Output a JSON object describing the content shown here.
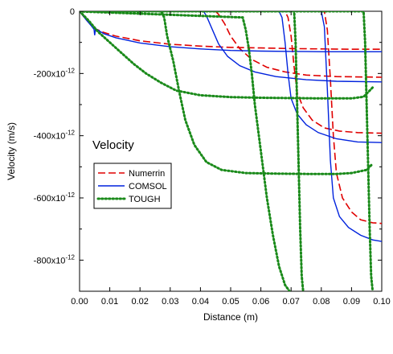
{
  "chart_data": {
    "type": "line",
    "xlabel": "Distance (m)",
    "ylabel": "Velocity (m/s)",
    "annotation": "Velocity",
    "xlim": [
      0,
      0.1
    ],
    "ylim": [
      -9e-10,
      0
    ],
    "x_ticks": [
      {
        "value": 0.0,
        "label": "0.00"
      },
      {
        "value": 0.01,
        "label": "0.01"
      },
      {
        "value": 0.02,
        "label": "0.02"
      },
      {
        "value": 0.03,
        "label": "0.03"
      },
      {
        "value": 0.04,
        "label": "0.04"
      },
      {
        "value": 0.05,
        "label": "0.05"
      },
      {
        "value": 0.06,
        "label": "0.06"
      },
      {
        "value": 0.07,
        "label": "0.07"
      },
      {
        "value": 0.08,
        "label": "0.08"
      },
      {
        "value": 0.09,
        "label": "0.09"
      },
      {
        "value": 0.1,
        "label": "0.10"
      }
    ],
    "y_ticks": [
      {
        "value": 0,
        "label": "0"
      },
      {
        "value": -2e-10,
        "mantissa": "-200x10",
        "exp": "-12"
      },
      {
        "value": -4e-10,
        "mantissa": "-400x10",
        "exp": "-12"
      },
      {
        "value": -6e-10,
        "mantissa": "-600x10",
        "exp": "-12"
      },
      {
        "value": -8e-10,
        "mantissa": "-800x10",
        "exp": "-12"
      }
    ],
    "legend": {
      "position": "middle-left",
      "entries": [
        {
          "label": "Numerrin",
          "color": "#e00000",
          "dash": "dashed"
        },
        {
          "label": "COMSOL",
          "color": "#0022dd",
          "dash": "solid"
        },
        {
          "label": "TOUGH",
          "color": "#1a8a1a",
          "dash": "dotted"
        }
      ]
    },
    "series": [
      {
        "group": "Numerrin",
        "color": "#e00000",
        "dash": "dashed",
        "points": [
          [
            0,
            0
          ],
          [
            0.002,
            -2.5e-11
          ],
          [
            0.005,
            -5.5e-11
          ],
          [
            0.008,
            -6.8e-11
          ],
          [
            0.012,
            -8e-11
          ],
          [
            0.02,
            -9.5e-11
          ],
          [
            0.03,
            -1.06e-10
          ],
          [
            0.04,
            -1.12e-10
          ],
          [
            0.05,
            -1.16e-10
          ],
          [
            0.06,
            -1.18e-10
          ],
          [
            0.07,
            -1.2e-10
          ],
          [
            0.08,
            -1.21e-10
          ],
          [
            0.09,
            -1.22e-10
          ],
          [
            0.1,
            -1.22e-10
          ]
        ]
      },
      {
        "group": "Numerrin",
        "color": "#e00000",
        "dash": "dashed",
        "points": [
          [
            0,
            0
          ],
          [
            0.045,
            0
          ],
          [
            0.046,
            -1e-11
          ],
          [
            0.048,
            -4e-11
          ],
          [
            0.05,
            -8e-11
          ],
          [
            0.053,
            -1.2e-10
          ],
          [
            0.057,
            -1.55e-10
          ],
          [
            0.062,
            -1.8e-10
          ],
          [
            0.068,
            -1.95e-10
          ],
          [
            0.075,
            -2.05e-10
          ],
          [
            0.085,
            -2.1e-10
          ],
          [
            0.1,
            -2.12e-10
          ]
        ]
      },
      {
        "group": "Numerrin",
        "color": "#e00000",
        "dash": "dashed",
        "points": [
          [
            0,
            0
          ],
          [
            0.068,
            0
          ],
          [
            0.069,
            -2e-11
          ],
          [
            0.07,
            -8e-11
          ],
          [
            0.071,
            -1.8e-10
          ],
          [
            0.072,
            -2.6e-10
          ],
          [
            0.074,
            -3.1e-10
          ],
          [
            0.077,
            -3.5e-10
          ],
          [
            0.081,
            -3.75e-10
          ],
          [
            0.086,
            -3.85e-10
          ],
          [
            0.092,
            -3.9e-10
          ],
          [
            0.1,
            -3.92e-10
          ]
        ]
      },
      {
        "group": "Numerrin",
        "color": "#e00000",
        "dash": "dashed",
        "points": [
          [
            0,
            0
          ],
          [
            0.081,
            0
          ],
          [
            0.082,
            -6e-11
          ],
          [
            0.083,
            -2.2e-10
          ],
          [
            0.084,
            -4e-10
          ],
          [
            0.085,
            -5.2e-10
          ],
          [
            0.087,
            -6e-10
          ],
          [
            0.09,
            -6.45e-10
          ],
          [
            0.093,
            -6.7e-10
          ],
          [
            0.097,
            -6.8e-10
          ],
          [
            0.1,
            -6.82e-10
          ]
        ]
      },
      {
        "group": "COMSOL",
        "color": "#0022dd",
        "dash": "solid",
        "points": [
          [
            0,
            0
          ],
          [
            0.002,
            -2.5e-11
          ],
          [
            0.004,
            -4.8e-11
          ],
          [
            0.0048,
            -5.8e-11
          ],
          [
            0.005,
            -7.7e-11
          ],
          [
            0.0053,
            -5.6e-11
          ],
          [
            0.008,
            -7.2e-11
          ],
          [
            0.012,
            -8.5e-11
          ],
          [
            0.02,
            -1.02e-10
          ],
          [
            0.03,
            -1.14e-10
          ],
          [
            0.04,
            -1.21e-10
          ],
          [
            0.05,
            -1.26e-10
          ],
          [
            0.06,
            -1.28e-10
          ],
          [
            0.07,
            -1.29e-10
          ],
          [
            0.08,
            -1.3e-10
          ],
          [
            0.09,
            -1.3e-10
          ],
          [
            0.1,
            -1.3e-10
          ]
        ]
      },
      {
        "group": "COMSOL",
        "color": "#0022dd",
        "dash": "solid",
        "points": [
          [
            0,
            0
          ],
          [
            0.041,
            0
          ],
          [
            0.042,
            -1.5e-11
          ],
          [
            0.044,
            -6e-11
          ],
          [
            0.046,
            -1.05e-10
          ],
          [
            0.049,
            -1.45e-10
          ],
          [
            0.053,
            -1.75e-10
          ],
          [
            0.058,
            -1.95e-10
          ],
          [
            0.065,
            -2.1e-10
          ],
          [
            0.075,
            -2.2e-10
          ],
          [
            0.085,
            -2.25e-10
          ],
          [
            0.1,
            -2.27e-10
          ]
        ]
      },
      {
        "group": "COMSOL",
        "color": "#0022dd",
        "dash": "solid",
        "points": [
          [
            0,
            0
          ],
          [
            0.066,
            0
          ],
          [
            0.067,
            -2e-11
          ],
          [
            0.068,
            -1e-10
          ],
          [
            0.069,
            -2e-10
          ],
          [
            0.07,
            -2.8e-10
          ],
          [
            0.072,
            -3.3e-10
          ],
          [
            0.075,
            -3.65e-10
          ],
          [
            0.079,
            -3.9e-10
          ],
          [
            0.085,
            -4.1e-10
          ],
          [
            0.092,
            -4.2e-10
          ],
          [
            0.1,
            -4.22e-10
          ]
        ]
      },
      {
        "group": "COMSOL",
        "color": "#0022dd",
        "dash": "solid",
        "points": [
          [
            0,
            0
          ],
          [
            0.08,
            0
          ],
          [
            0.081,
            -5e-11
          ],
          [
            0.082,
            -2.5e-10
          ],
          [
            0.083,
            -4.8e-10
          ],
          [
            0.084,
            -6e-10
          ],
          [
            0.086,
            -6.6e-10
          ],
          [
            0.089,
            -6.95e-10
          ],
          [
            0.093,
            -7.2e-10
          ],
          [
            0.097,
            -7.35e-10
          ],
          [
            0.1,
            -7.4e-10
          ]
        ]
      },
      {
        "group": "TOUGH",
        "color": "#1a8a1a",
        "dash": "dotted",
        "points": [
          [
            0,
            0
          ],
          [
            0.003,
            -3e-11
          ],
          [
            0.006,
            -6.5e-11
          ],
          [
            0.01,
            -1e-10
          ],
          [
            0.014,
            -1.35e-10
          ],
          [
            0.018,
            -1.7e-10
          ],
          [
            0.022,
            -2e-10
          ],
          [
            0.027,
            -2.3e-10
          ],
          [
            0.032,
            -2.55e-10
          ],
          [
            0.04,
            -2.7e-10
          ],
          [
            0.05,
            -2.76e-10
          ],
          [
            0.06,
            -2.78e-10
          ],
          [
            0.07,
            -2.79e-10
          ],
          [
            0.08,
            -2.8e-10
          ],
          [
            0.09,
            -2.8e-10
          ],
          [
            0.094,
            -2.75e-10
          ],
          [
            0.096,
            -2.55e-10
          ],
          [
            0.097,
            -2.45e-10
          ]
        ]
      },
      {
        "group": "TOUGH",
        "color": "#1a8a1a",
        "dash": "dotted",
        "points": [
          [
            0,
            0
          ],
          [
            0.027,
            0
          ],
          [
            0.028,
            -2e-11
          ],
          [
            0.029,
            -8e-11
          ],
          [
            0.031,
            -1.6e-10
          ],
          [
            0.033,
            -2.6e-10
          ],
          [
            0.035,
            -3.5e-10
          ],
          [
            0.038,
            -4.3e-10
          ],
          [
            0.042,
            -4.85e-10
          ],
          [
            0.047,
            -5.1e-10
          ],
          [
            0.055,
            -5.2e-10
          ],
          [
            0.065,
            -5.22e-10
          ],
          [
            0.075,
            -5.23e-10
          ],
          [
            0.085,
            -5.23e-10
          ],
          [
            0.09,
            -5.2e-10
          ],
          [
            0.095,
            -5.1e-10
          ],
          [
            0.097,
            -4.9e-10
          ]
        ]
      },
      {
        "group": "TOUGH",
        "color": "#1a8a1a",
        "dash": "dotted",
        "points": [
          [
            0,
            0
          ],
          [
            0.0,
            -5e-13
          ],
          [
            0.054,
            -2e-11
          ],
          [
            0.055,
            -6e-11
          ],
          [
            0.056,
            -1.2e-10
          ],
          [
            0.057,
            -2e-10
          ],
          [
            0.058,
            -3e-10
          ],
          [
            0.06,
            -4.5e-10
          ],
          [
            0.062,
            -6e-10
          ],
          [
            0.064,
            -7.2e-10
          ],
          [
            0.066,
            -8.2e-10
          ],
          [
            0.068,
            -8.8e-10
          ],
          [
            0.0695,
            -9e-10
          ]
        ]
      },
      {
        "group": "TOUGH",
        "color": "#1a8a1a",
        "dash": "dotted",
        "points": [
          [
            0,
            0
          ],
          [
            0.071,
            0
          ],
          [
            0.0715,
            -1e-10
          ],
          [
            0.072,
            -3e-10
          ],
          [
            0.0725,
            -5e-10
          ],
          [
            0.073,
            -7e-10
          ],
          [
            0.0735,
            -8.5e-10
          ],
          [
            0.074,
            -9e-10
          ]
        ]
      },
      {
        "group": "TOUGH",
        "color": "#1a8a1a",
        "dash": "dotted",
        "points": [
          [
            0,
            0
          ],
          [
            0.094,
            0
          ],
          [
            0.0945,
            -1e-10
          ],
          [
            0.095,
            -3e-10
          ],
          [
            0.0955,
            -5e-10
          ],
          [
            0.096,
            -7e-10
          ],
          [
            0.0965,
            -8.5e-10
          ],
          [
            0.097,
            -9e-10
          ]
        ]
      }
    ]
  }
}
